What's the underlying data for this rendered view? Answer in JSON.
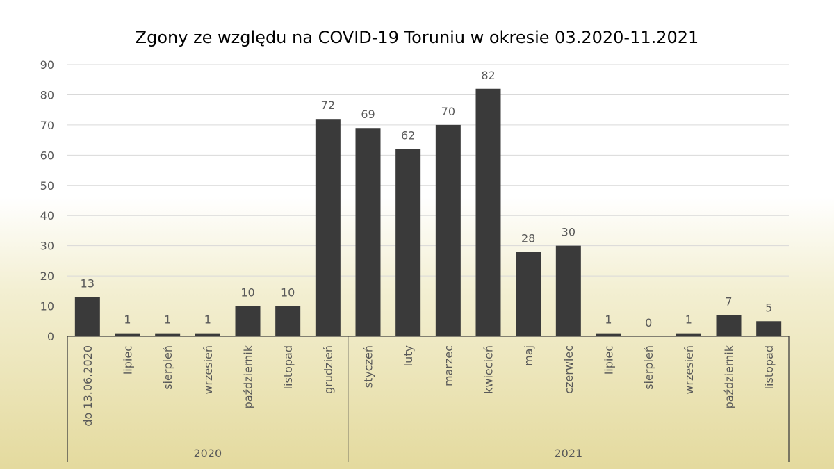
{
  "chart_data": {
    "type": "bar",
    "title": "Zgony ze względu na COVID-19 Toruniu w okresie 03.2020-11.2021",
    "xlabel": "",
    "ylabel": "",
    "ylim": [
      0,
      90
    ],
    "yticks": [
      0,
      10,
      20,
      30,
      40,
      50,
      60,
      70,
      80,
      90
    ],
    "grid": true,
    "categories": [
      "do 13.06.2020",
      "lipiec",
      "sierpień",
      "wrzesień",
      "październik",
      "listopad",
      "grudzień",
      "styczeń",
      "luty",
      "marzec",
      "kwiecień",
      "maj",
      "czerwiec",
      "lipiec",
      "sierpień",
      "wrzesień",
      "październik",
      "listopad"
    ],
    "groups": [
      {
        "label": "2020",
        "count": 7
      },
      {
        "label": "2021",
        "count": 11
      }
    ],
    "values": [
      13,
      1,
      1,
      1,
      10,
      10,
      72,
      69,
      62,
      70,
      82,
      28,
      30,
      1,
      0,
      1,
      7,
      5
    ],
    "bar_color": "#3a3a3a"
  }
}
